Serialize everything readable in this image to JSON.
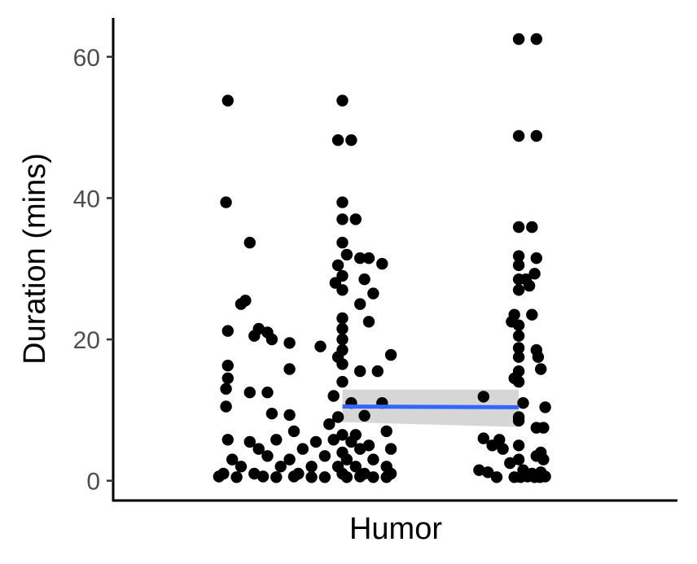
{
  "colors": {
    "points": "#000000",
    "fit_line": "#3366ff",
    "ci_band": "#999999",
    "axis": "#000000",
    "tick_label": "#4d4d4d"
  },
  "chart_data": {
    "type": "scatter",
    "xlabel": "Humor",
    "ylabel": "Duration (mins)",
    "xlim": [
      -2.6,
      3.8
    ],
    "ylim": [
      -2.8,
      65.5
    ],
    "yticks": [
      0,
      20,
      40,
      60
    ],
    "ytick_labels": [
      "0",
      "20",
      "40",
      "60"
    ],
    "grid": false,
    "series": [
      {
        "points": [
          {
            "x": -1.3,
            "y": 53.8
          },
          {
            "x": 0.0,
            "y": 53.8
          },
          {
            "x": -0.05,
            "y": 48.2
          },
          {
            "x": 0.1,
            "y": 48.2
          },
          {
            "x": -1.32,
            "y": 39.4
          },
          {
            "x": 0.0,
            "y": 39.4
          },
          {
            "x": 0.0,
            "y": 37.0
          },
          {
            "x": 0.15,
            "y": 37.0
          },
          {
            "x": -1.05,
            "y": 33.7
          },
          {
            "x": 0.0,
            "y": 33.7
          },
          {
            "x": 0.05,
            "y": 32.0
          },
          {
            "x": 0.2,
            "y": 31.5
          },
          {
            "x": 0.3,
            "y": 31.5
          },
          {
            "x": 0.45,
            "y": 30.7
          },
          {
            "x": -0.05,
            "y": 30.5
          },
          {
            "x": 0.0,
            "y": 29.0
          },
          {
            "x": 0.25,
            "y": 28.5
          },
          {
            "x": -0.08,
            "y": 28.0
          },
          {
            "x": 0.0,
            "y": 27.0
          },
          {
            "x": 0.35,
            "y": 26.5
          },
          {
            "x": -1.1,
            "y": 25.5
          },
          {
            "x": -1.15,
            "y": 25.0
          },
          {
            "x": 0.2,
            "y": 25.0
          },
          {
            "x": 0.0,
            "y": 23.0
          },
          {
            "x": 0.3,
            "y": 22.5
          },
          {
            "x": 0.0,
            "y": 21.5
          },
          {
            "x": -1.3,
            "y": 21.2
          },
          {
            "x": -0.95,
            "y": 21.5
          },
          {
            "x": -0.85,
            "y": 21.0
          },
          {
            "x": -1.0,
            "y": 20.5
          },
          {
            "x": -0.8,
            "y": 20.0
          },
          {
            "x": 0.0,
            "y": 20.0
          },
          {
            "x": -0.6,
            "y": 19.5
          },
          {
            "x": -0.25,
            "y": 19.0
          },
          {
            "x": 0.0,
            "y": 18.5
          },
          {
            "x": -0.05,
            "y": 17.5
          },
          {
            "x": 0.55,
            "y": 17.8
          },
          {
            "x": -1.3,
            "y": 16.3
          },
          {
            "x": 0.0,
            "y": 16.5
          },
          {
            "x": -0.6,
            "y": 15.8
          },
          {
            "x": 0.2,
            "y": 15.5
          },
          {
            "x": 0.4,
            "y": 15.5
          },
          {
            "x": -1.3,
            "y": 14.5
          },
          {
            "x": 0.0,
            "y": 14.0
          },
          {
            "x": -1.32,
            "y": 13.0
          },
          {
            "x": -1.05,
            "y": 12.5
          },
          {
            "x": -0.85,
            "y": 12.5
          },
          {
            "x": -0.1,
            "y": 12.0
          },
          {
            "x": 0.1,
            "y": 11.0
          },
          {
            "x": -1.32,
            "y": 10.5
          },
          {
            "x": 0.45,
            "y": 11.0
          },
          {
            "x": -0.8,
            "y": 9.5
          },
          {
            "x": -0.6,
            "y": 9.3
          },
          {
            "x": -0.05,
            "y": 9.0
          },
          {
            "x": 0.25,
            "y": 9.2
          },
          {
            "x": -0.15,
            "y": 8.0
          },
          {
            "x": -0.55,
            "y": 7.0
          },
          {
            "x": 0.0,
            "y": 6.5
          },
          {
            "x": 0.15,
            "y": 6.5
          },
          {
            "x": 0.5,
            "y": 7.0
          },
          {
            "x": -1.3,
            "y": 5.8
          },
          {
            "x": -1.05,
            "y": 5.5
          },
          {
            "x": -0.75,
            "y": 5.8
          },
          {
            "x": -0.3,
            "y": 5.5
          },
          {
            "x": -0.1,
            "y": 5.8
          },
          {
            "x": 0.1,
            "y": 5.5
          },
          {
            "x": 0.3,
            "y": 5.0
          },
          {
            "x": -0.95,
            "y": 4.5
          },
          {
            "x": -0.45,
            "y": 4.5
          },
          {
            "x": 0.0,
            "y": 4.0
          },
          {
            "x": 0.2,
            "y": 4.5
          },
          {
            "x": 0.55,
            "y": 4.5
          },
          {
            "x": -1.25,
            "y": 3.0
          },
          {
            "x": -0.85,
            "y": 3.5
          },
          {
            "x": -0.6,
            "y": 3.0
          },
          {
            "x": -0.2,
            "y": 3.5
          },
          {
            "x": 0.05,
            "y": 3.0
          },
          {
            "x": 0.35,
            "y": 3.0
          },
          {
            "x": -1.15,
            "y": 2.0
          },
          {
            "x": -0.7,
            "y": 2.0
          },
          {
            "x": -0.35,
            "y": 2.0
          },
          {
            "x": -0.05,
            "y": 2.0
          },
          {
            "x": 0.15,
            "y": 2.0
          },
          {
            "x": 0.5,
            "y": 2.0
          },
          {
            "x": -1.35,
            "y": 1.0
          },
          {
            "x": -1.0,
            "y": 1.0
          },
          {
            "x": -0.5,
            "y": 1.0
          },
          {
            "x": 0.0,
            "y": 1.0
          },
          {
            "x": 0.25,
            "y": 1.0
          },
          {
            "x": 0.55,
            "y": 1.0
          },
          {
            "x": -1.4,
            "y": 0.6
          },
          {
            "x": -1.2,
            "y": 0.5
          },
          {
            "x": -0.9,
            "y": 0.6
          },
          {
            "x": -0.75,
            "y": 0.5
          },
          {
            "x": -0.55,
            "y": 0.6
          },
          {
            "x": -0.35,
            "y": 0.5
          },
          {
            "x": -0.2,
            "y": 0.5
          },
          {
            "x": 0.05,
            "y": 0.5
          },
          {
            "x": 0.2,
            "y": 0.6
          },
          {
            "x": 0.35,
            "y": 0.5
          },
          {
            "x": 0.5,
            "y": 0.5
          },
          {
            "x": 2.0,
            "y": 62.5
          },
          {
            "x": 2.2,
            "y": 62.5
          },
          {
            "x": 2.0,
            "y": 48.8
          },
          {
            "x": 2.2,
            "y": 48.8
          },
          {
            "x": 2.0,
            "y": 35.9
          },
          {
            "x": 2.15,
            "y": 35.9
          },
          {
            "x": 2.0,
            "y": 31.8
          },
          {
            "x": 2.2,
            "y": 31.5
          },
          {
            "x": 2.0,
            "y": 30.5
          },
          {
            "x": 2.18,
            "y": 29.3
          },
          {
            "x": 2.0,
            "y": 28.5
          },
          {
            "x": 2.08,
            "y": 28.5
          },
          {
            "x": 2.12,
            "y": 27.6
          },
          {
            "x": 2.0,
            "y": 27.0
          },
          {
            "x": 1.95,
            "y": 23.5
          },
          {
            "x": 2.15,
            "y": 23.5
          },
          {
            "x": 1.92,
            "y": 22.5
          },
          {
            "x": 2.0,
            "y": 22.0
          },
          {
            "x": 2.0,
            "y": 20.5
          },
          {
            "x": 2.0,
            "y": 18.8
          },
          {
            "x": 2.2,
            "y": 18.5
          },
          {
            "x": 2.0,
            "y": 17.5
          },
          {
            "x": 2.22,
            "y": 17.5
          },
          {
            "x": 2.0,
            "y": 15.5
          },
          {
            "x": 2.25,
            "y": 15.8
          },
          {
            "x": 1.95,
            "y": 14.5
          },
          {
            "x": 2.0,
            "y": 14.0
          },
          {
            "x": 1.6,
            "y": 11.9
          },
          {
            "x": 2.05,
            "y": 11.0
          },
          {
            "x": 2.3,
            "y": 10.4
          },
          {
            "x": 2.0,
            "y": 9.0
          },
          {
            "x": 2.0,
            "y": 8.5
          },
          {
            "x": 2.2,
            "y": 7.5
          },
          {
            "x": 2.28,
            "y": 7.5
          },
          {
            "x": 1.6,
            "y": 6.0
          },
          {
            "x": 1.78,
            "y": 5.8
          },
          {
            "x": 1.7,
            "y": 5.0
          },
          {
            "x": 1.82,
            "y": 4.5
          },
          {
            "x": 2.0,
            "y": 5.0
          },
          {
            "x": 2.2,
            "y": 3.5
          },
          {
            "x": 2.25,
            "y": 4.0
          },
          {
            "x": 2.28,
            "y": 3.0
          },
          {
            "x": 2.0,
            "y": 3.0
          },
          {
            "x": 1.9,
            "y": 2.5
          },
          {
            "x": 1.55,
            "y": 1.5
          },
          {
            "x": 1.65,
            "y": 1.2
          },
          {
            "x": 2.05,
            "y": 1.5
          },
          {
            "x": 2.15,
            "y": 1.0
          },
          {
            "x": 2.25,
            "y": 1.2
          },
          {
            "x": 1.75,
            "y": 0.5
          },
          {
            "x": 1.95,
            "y": 0.5
          },
          {
            "x": 2.02,
            "y": 0.5
          },
          {
            "x": 2.1,
            "y": 0.6
          },
          {
            "x": 2.18,
            "y": 0.5
          },
          {
            "x": 2.24,
            "y": 0.5
          },
          {
            "x": 2.3,
            "y": 0.6
          }
        ]
      }
    ],
    "fit": {
      "x": [
        0.0,
        2.0
      ],
      "y": [
        10.5,
        10.4
      ],
      "ci_upper": [
        12.9,
        12.9
      ],
      "ci_lower": [
        8.3,
        7.6
      ]
    }
  }
}
